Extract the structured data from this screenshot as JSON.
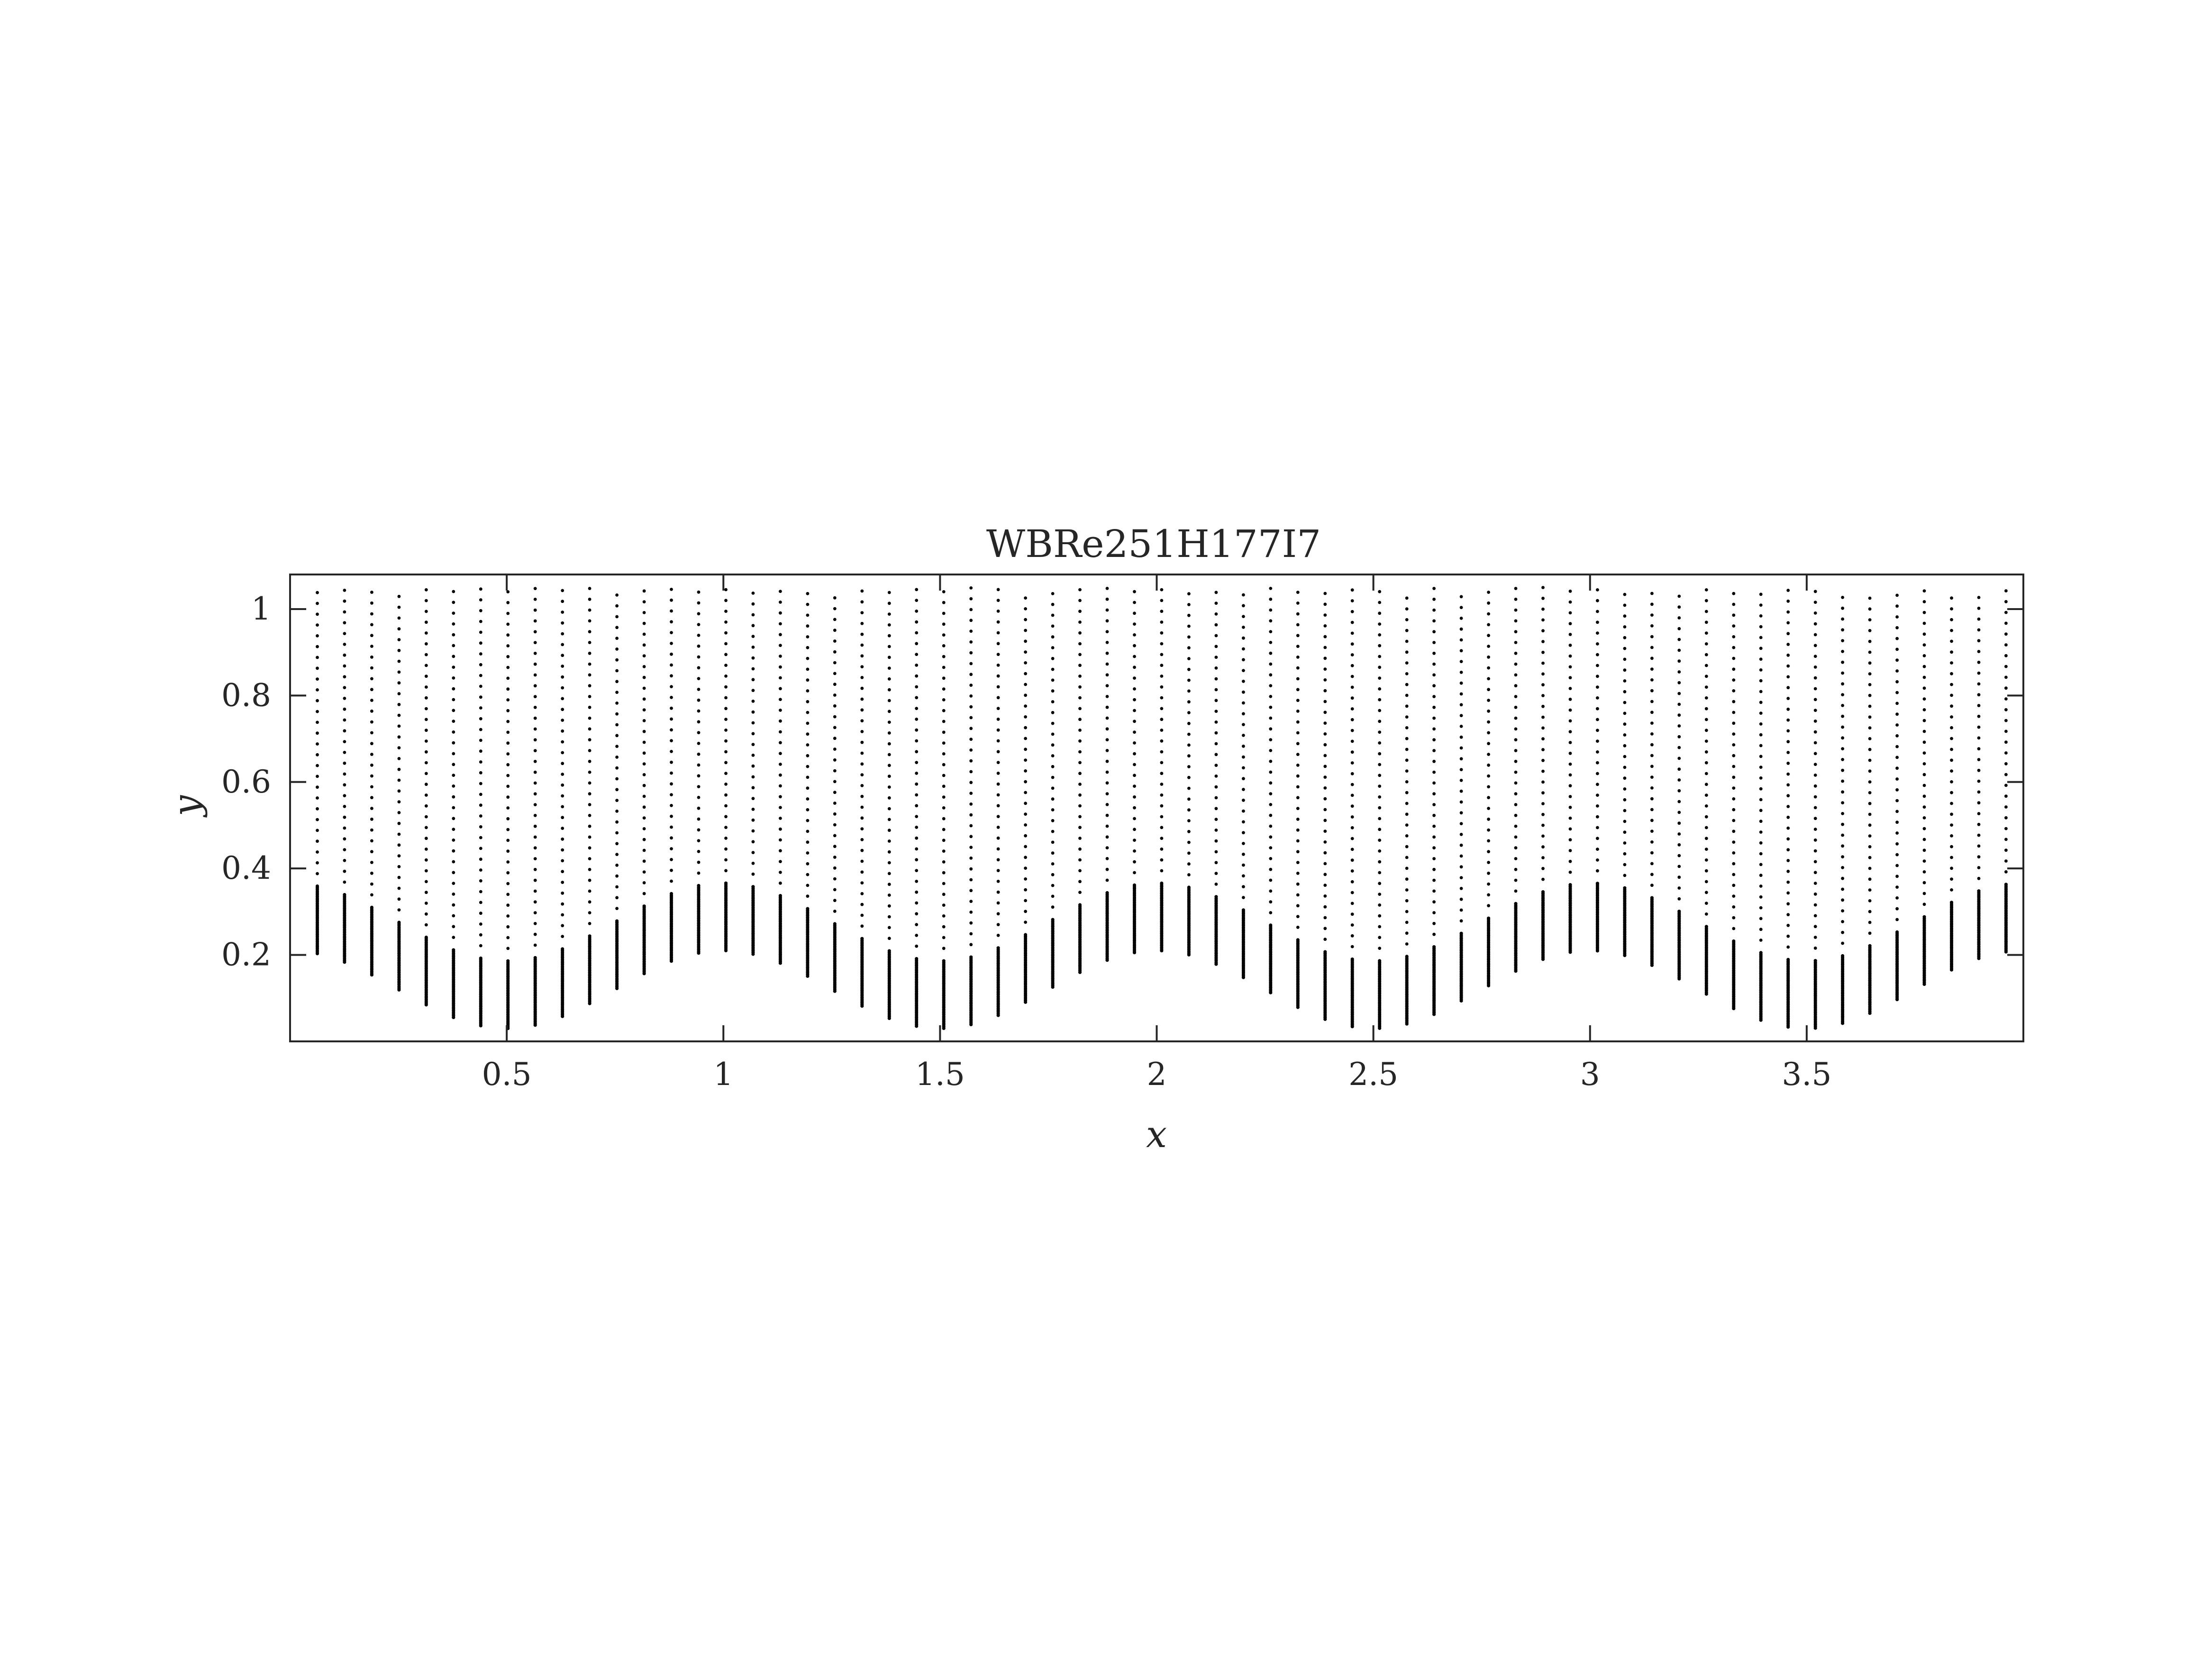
{
  "chart_data": {
    "type": "scatter",
    "title": "WBRe251H177I7",
    "xlabel": "x",
    "ylabel": "y",
    "xlim": [
      0,
      4
    ],
    "ylim": [
      0,
      1.08
    ],
    "xticks": [
      "0.5",
      "1",
      "1.5",
      "2",
      "2.5",
      "3",
      "3.5"
    ],
    "xtick_values": [
      0.5,
      1,
      1.5,
      2,
      2.5,
      3,
      3.5
    ],
    "yticks": [
      "0.2",
      "0.4",
      "0.6",
      "0.8",
      "1"
    ],
    "ytick_values": [
      0.2,
      0.4,
      0.6,
      0.8,
      1.0
    ],
    "grid": false,
    "marker": "point",
    "marker_color": "#000000",
    "series": [
      {
        "description_values": {
          "grid_x_start": 0.0,
          "grid_x_end": 3.96,
          "grid_x_count": 64,
          "y_top": 1.05,
          "wall_mean": 0.12,
          "wall_amplitude": 0.09,
          "wall_period": 1.0,
          "wall_phase_peak_x": 1.0,
          "coarse_dy": 0.025,
          "fine_dy": 0.004,
          "refined_band_height": 0.16
        }
      }
    ]
  }
}
